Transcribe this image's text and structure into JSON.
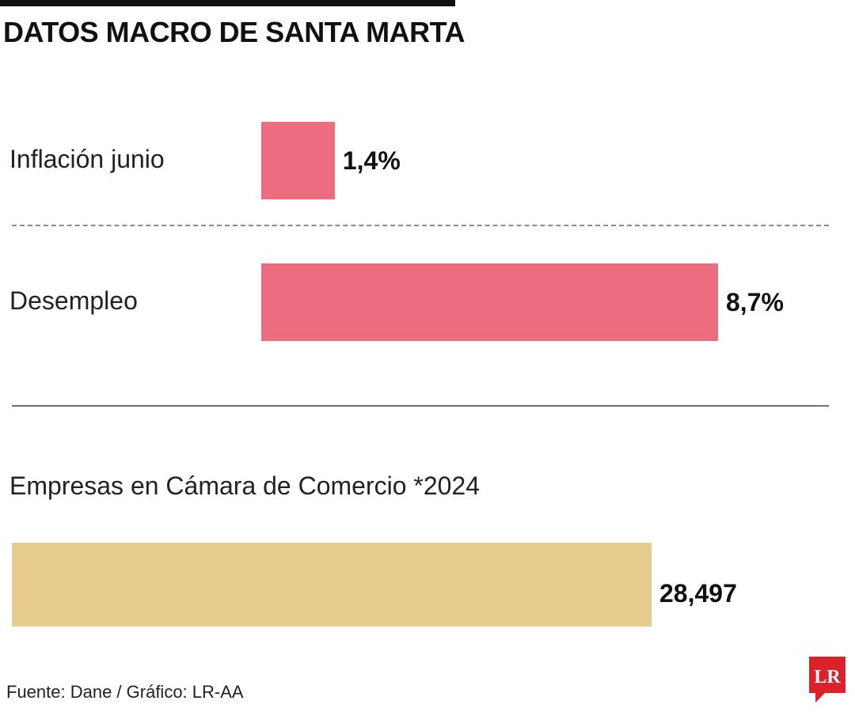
{
  "title": "DATOS MACRO DE SANTA MARTA",
  "chart_data": [
    {
      "type": "bar",
      "orientation": "horizontal",
      "categories": [
        "Inflación junio",
        "Desempleo"
      ],
      "values": [
        1.4,
        8.7
      ],
      "value_labels": [
        "1,4%",
        "8,7%"
      ],
      "unit": "%",
      "color": "#ec6e7e"
    },
    {
      "type": "bar",
      "orientation": "horizontal",
      "title": "Empresas en Cámara de Comercio *2024",
      "categories": [
        "Empresas en Cámara de Comercio *2024"
      ],
      "values": [
        28497
      ],
      "value_labels": [
        "28,497"
      ],
      "color": "#e8cb8f"
    }
  ],
  "source": "Fuente: Dane / Gráfico: LR-AA",
  "logo_text": "LR",
  "colors": {
    "accent_pink": "#ec6e7e",
    "accent_gold": "#e8cb8f",
    "logo_red": "#d8232a"
  }
}
